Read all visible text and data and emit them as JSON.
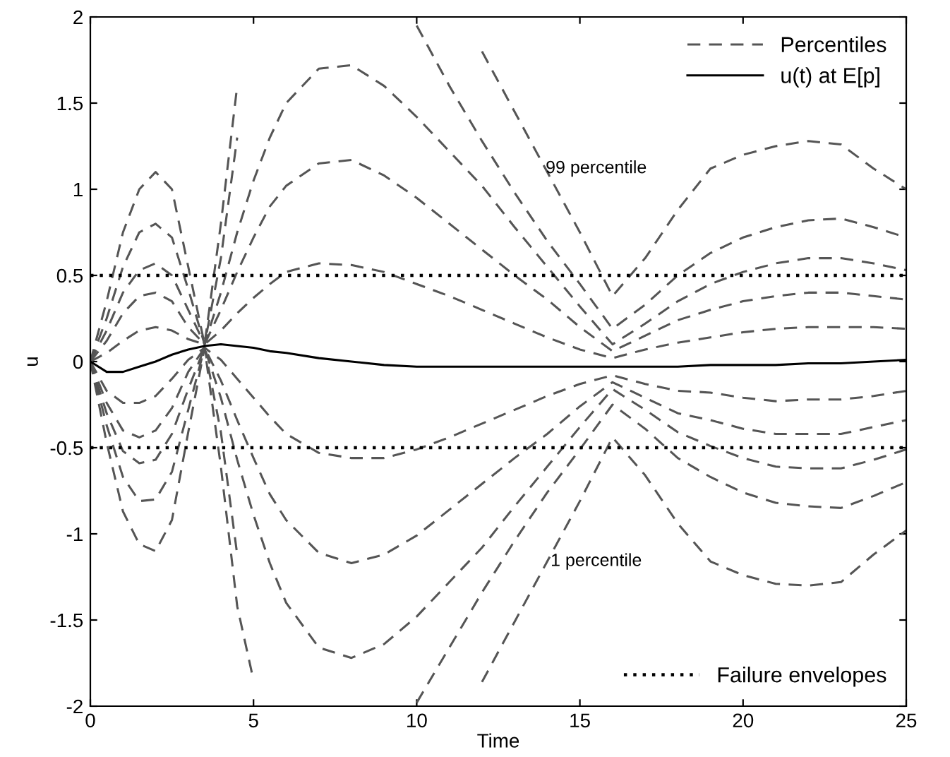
{
  "chart_data": {
    "type": "line",
    "xlabel": "Time",
    "ylabel": "u",
    "x": [
      0,
      0.5,
      1,
      1.5,
      2,
      2.5,
      3,
      3.5,
      4,
      4.5,
      5,
      5.5,
      6,
      7,
      8,
      9,
      10,
      11,
      12,
      13,
      14,
      15,
      16,
      17,
      18,
      19,
      20,
      21,
      22,
      23,
      24,
      25
    ],
    "xlim": [
      0,
      25
    ],
    "xticks": [
      0,
      5,
      10,
      15,
      20,
      25
    ],
    "ylim": [
      -2,
      2
    ],
    "yticks": [
      -2,
      -1.5,
      -1,
      -0.5,
      0,
      0.5,
      1,
      1.5,
      2
    ],
    "grid": false,
    "legend": "top right",
    "marker": "none",
    "series": [
      {
        "name": "Percentiles",
        "color": "#555555",
        "line_style": "dashed",
        "values": [
          0,
          0.35,
          0.75,
          1.0,
          1.1,
          1.0,
          0.55,
          0.1,
          0.8,
          1.6,
          null,
          null,
          null,
          null,
          null,
          null,
          null,
          null,
          1.8,
          1.45,
          1.1,
          0.75,
          0.38,
          0.6,
          0.88,
          1.12,
          1.2,
          1.25,
          1.28,
          1.26,
          1.12,
          1.0
        ]
      },
      {
        "color": "#555555",
        "line_style": "dashed",
        "values": [
          0,
          0.25,
          0.55,
          0.75,
          0.8,
          0.72,
          0.42,
          0.1,
          0.6,
          1.3,
          null,
          null,
          null,
          null,
          null,
          null,
          1.95,
          1.6,
          1.28,
          0.98,
          0.7,
          0.45,
          0.19,
          0.33,
          0.5,
          0.63,
          0.72,
          0.78,
          0.82,
          0.83,
          0.78,
          0.72
        ]
      },
      {
        "color": "#555555",
        "line_style": "dashed",
        "values": [
          0,
          0.18,
          0.4,
          0.53,
          0.57,
          0.5,
          0.3,
          0.1,
          0.4,
          0.75,
          1.05,
          1.3,
          1.5,
          1.7,
          1.72,
          1.6,
          1.42,
          1.22,
          1.02,
          0.78,
          0.55,
          0.32,
          0.1,
          0.22,
          0.35,
          0.45,
          0.52,
          0.57,
          0.6,
          0.6,
          0.57,
          0.53
        ]
      },
      {
        "color": "#555555",
        "line_style": "dashed",
        "values": [
          0,
          0.12,
          0.28,
          0.38,
          0.4,
          0.35,
          0.2,
          0.1,
          0.3,
          0.52,
          0.72,
          0.9,
          1.02,
          1.15,
          1.17,
          1.08,
          0.95,
          0.8,
          0.65,
          0.5,
          0.36,
          0.2,
          0.06,
          0.15,
          0.24,
          0.3,
          0.35,
          0.38,
          0.4,
          0.4,
          0.38,
          0.36
        ]
      },
      {
        "color": "#555555",
        "line_style": "dashed",
        "values": [
          0,
          0.05,
          0.12,
          0.18,
          0.2,
          0.18,
          0.13,
          0.1,
          0.18,
          0.28,
          0.37,
          0.45,
          0.52,
          0.57,
          0.56,
          0.52,
          0.45,
          0.38,
          0.3,
          0.22,
          0.14,
          0.07,
          0.02,
          0.07,
          0.11,
          0.14,
          0.17,
          0.19,
          0.2,
          0.2,
          0.2,
          0.19
        ]
      },
      {
        "color": "#555555",
        "line_style": "dashed",
        "values": [
          0,
          -0.17,
          -0.24,
          -0.24,
          -0.2,
          -0.1,
          0.01,
          0.08,
          0.01,
          -0.1,
          -0.21,
          -0.32,
          -0.42,
          -0.53,
          -0.56,
          -0.56,
          -0.51,
          -0.44,
          -0.36,
          -0.28,
          -0.2,
          -0.13,
          -0.08,
          -0.13,
          -0.17,
          -0.18,
          -0.21,
          -0.23,
          -0.22,
          -0.22,
          -0.2,
          -0.17
        ]
      },
      {
        "color": "#555555",
        "line_style": "dashed",
        "values": [
          0,
          -0.24,
          -0.4,
          -0.44,
          -0.4,
          -0.27,
          -0.06,
          0.08,
          -0.11,
          -0.34,
          -0.56,
          -0.77,
          -0.92,
          -1.11,
          -1.17,
          -1.12,
          -1.01,
          -0.86,
          -0.71,
          -0.56,
          -0.42,
          -0.26,
          -0.12,
          -0.21,
          -0.3,
          -0.34,
          -0.39,
          -0.42,
          -0.42,
          -0.42,
          -0.38,
          -0.34
        ]
      },
      {
        "color": "#555555",
        "line_style": "dashed",
        "values": [
          0,
          -0.3,
          -0.52,
          -0.59,
          -0.57,
          -0.42,
          -0.16,
          0.08,
          -0.21,
          -0.57,
          -0.89,
          -1.17,
          -1.4,
          -1.66,
          -1.72,
          -1.64,
          -1.48,
          -1.28,
          -1.08,
          -0.84,
          -0.61,
          -0.38,
          -0.16,
          -0.28,
          -0.41,
          -0.49,
          -0.56,
          -0.61,
          -0.62,
          -0.62,
          -0.57,
          -0.51
        ]
      },
      {
        "color": "#555555",
        "line_style": "dashed",
        "values": [
          0,
          -0.37,
          -0.67,
          -0.81,
          -0.8,
          -0.64,
          -0.28,
          0.08,
          -0.41,
          -1.12,
          null,
          null,
          null,
          null,
          null,
          null,
          -1.98,
          -1.66,
          -1.34,
          -1.04,
          -0.76,
          -0.51,
          -0.25,
          -0.39,
          -0.56,
          -0.67,
          -0.76,
          -0.82,
          -0.84,
          -0.85,
          -0.78,
          -0.7
        ]
      },
      {
        "color": "#555555",
        "line_style": "dashed",
        "values": [
          0,
          -0.47,
          -0.87,
          -1.06,
          -1.1,
          -0.92,
          -0.41,
          0.08,
          -0.61,
          -1.42,
          -1.85,
          null,
          null,
          null,
          null,
          null,
          null,
          null,
          -1.86,
          -1.51,
          -1.16,
          -0.81,
          -0.44,
          -0.66,
          -0.94,
          -1.16,
          -1.24,
          -1.29,
          -1.3,
          -1.28,
          -1.12,
          -0.98
        ]
      },
      {
        "name": "u(t) at E[p]",
        "color": "#000000",
        "line_style": "solid",
        "values": [
          0,
          -0.06,
          -0.06,
          -0.03,
          0,
          0.04,
          0.07,
          0.09,
          0.1,
          0.09,
          0.08,
          0.06,
          0.05,
          0.02,
          0,
          -0.02,
          -0.03,
          -0.03,
          -0.03,
          -0.03,
          -0.03,
          -0.03,
          -0.03,
          -0.03,
          -0.03,
          -0.02,
          -0.02,
          -0.02,
          -0.01,
          -0.01,
          0,
          0.01
        ]
      }
    ],
    "ref_lines": [
      {
        "axis": "y",
        "value": 0.5,
        "label": "Failure envelopes",
        "color": "#000000",
        "line_style": "dotted"
      },
      {
        "axis": "y",
        "value": -0.5,
        "color": "#000000",
        "line_style": "dotted"
      }
    ],
    "annotations": [
      "99 percentile",
      "1 percentile"
    ]
  }
}
